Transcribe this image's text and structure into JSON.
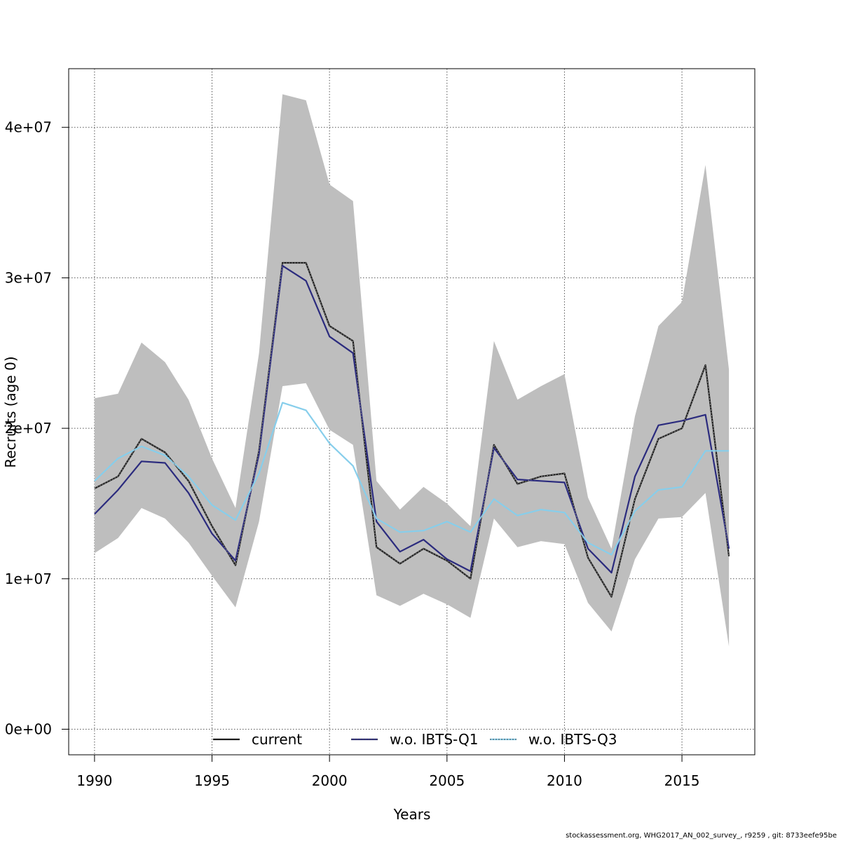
{
  "chart_data": {
    "type": "line",
    "title": "",
    "xlabel": "Years",
    "ylabel": "Recruits (age 0)",
    "xlim": [
      1988.9,
      2018.1
    ],
    "ylim": [
      -1700000,
      43900000
    ],
    "x_ticks": [
      1990,
      1995,
      2000,
      2005,
      2010,
      2015
    ],
    "x_tick_labels": [
      "1990",
      "1995",
      "2000",
      "2005",
      "2010",
      "2015"
    ],
    "y_ticks": [
      0,
      10000000,
      20000000,
      30000000,
      40000000
    ],
    "y_tick_labels": [
      "0e+00",
      "1e+07",
      "2e+07",
      "3e+07",
      "4e+07"
    ],
    "grid": true,
    "legend_position": "bottom",
    "x": [
      1990,
      1991,
      1992,
      1993,
      1994,
      1995,
      1996,
      1997,
      1998,
      1999,
      2000,
      2001,
      2002,
      2003,
      2004,
      2005,
      2006,
      2007,
      2008,
      2009,
      2010,
      2011,
      2012,
      2013,
      2014,
      2015,
      2016,
      2017
    ],
    "band": {
      "upper": [
        22000000,
        22300000,
        25700000,
        24400000,
        21900000,
        18000000,
        14700000,
        25000000,
        42200000,
        41800000,
        36200000,
        35100000,
        16500000,
        14600000,
        16100000,
        15000000,
        13500000,
        25800000,
        21900000,
        22800000,
        23600000,
        15400000,
        12000000,
        20800000,
        26800000,
        28400000,
        37500000,
        23900000
      ],
      "lower": [
        11700000,
        12700000,
        14700000,
        14000000,
        12400000,
        10200000,
        8100000,
        13800000,
        22800000,
        23000000,
        19900000,
        18900000,
        8900000,
        8200000,
        9000000,
        8300000,
        7400000,
        14000000,
        12100000,
        12500000,
        12300000,
        8400000,
        6500000,
        11300000,
        14000000,
        14100000,
        15700000,
        5500000
      ],
      "color": "#bebebe"
    },
    "series": [
      {
        "name": "current",
        "color": "#1a1a1a",
        "values": [
          16000000,
          16800000,
          19300000,
          18400000,
          16500000,
          13500000,
          10900000,
          18500000,
          31000000,
          31000000,
          26800000,
          25800000,
          12100000,
          11000000,
          12000000,
          11200000,
          10000000,
          18900000,
          16300000,
          16800000,
          17000000,
          11400000,
          8800000,
          15300000,
          19300000,
          20000000,
          24200000,
          11500000
        ]
      },
      {
        "name": "w.o. IBTS-Q1",
        "color": "#2b2b7e",
        "values": [
          14300000,
          15900000,
          17800000,
          17700000,
          15700000,
          13000000,
          11200000,
          18300000,
          30800000,
          29800000,
          26100000,
          25000000,
          13800000,
          11800000,
          12600000,
          11300000,
          10500000,
          18700000,
          16600000,
          16500000,
          16400000,
          12000000,
          10400000,
          16800000,
          20200000,
          20500000,
          20900000,
          12000000
        ]
      },
      {
        "name": "w.o. IBTS-Q3",
        "color": "#87ceeb",
        "values": [
          16500000,
          18000000,
          18800000,
          18200000,
          16800000,
          14900000,
          13900000,
          17000000,
          21700000,
          21200000,
          19000000,
          17500000,
          14000000,
          13100000,
          13200000,
          13800000,
          13100000,
          15300000,
          14200000,
          14600000,
          14400000,
          12400000,
          11600000,
          14500000,
          15900000,
          16100000,
          18500000,
          18500000
        ]
      }
    ]
  },
  "footer": {
    "credit": "stockassessment.org, WHG2017_AN_002_survey_, r9259 , git: 8733eefe95be"
  }
}
